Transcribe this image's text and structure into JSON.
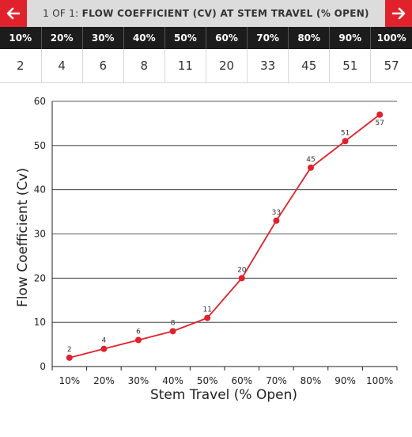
{
  "header": {
    "prefix": "1 OF 1:",
    "title": "FLOW COEFFICIENT (CV) AT STEM TRAVEL (% OPEN)",
    "prev_icon": "arrow-left-icon",
    "next_icon": "arrow-right-icon",
    "accent_color": "#e0222c"
  },
  "table": {
    "headers": [
      "10%",
      "20%",
      "30%",
      "40%",
      "50%",
      "60%",
      "70%",
      "80%",
      "90%",
      "100%"
    ],
    "values": [
      "2",
      "4",
      "6",
      "8",
      "11",
      "20",
      "33",
      "45",
      "51",
      "57"
    ]
  },
  "chart_data": {
    "type": "line",
    "categories": [
      "10%",
      "20%",
      "30%",
      "40%",
      "50%",
      "60%",
      "70%",
      "80%",
      "90%",
      "100%"
    ],
    "values": [
      2,
      4,
      6,
      8,
      11,
      20,
      33,
      45,
      51,
      57
    ],
    "data_labels": [
      "2",
      "4",
      "6",
      "8",
      "11",
      "20",
      "33",
      "45",
      "51",
      "57"
    ],
    "xlabel": "Stem Travel (% Open)",
    "ylabel": "Flow Coefficient (Cv)",
    "ylim": [
      0,
      60
    ],
    "yticks": [
      "0",
      "10",
      "20",
      "30",
      "40",
      "50",
      "60"
    ],
    "grid": true,
    "line_color": "#e0222c"
  }
}
